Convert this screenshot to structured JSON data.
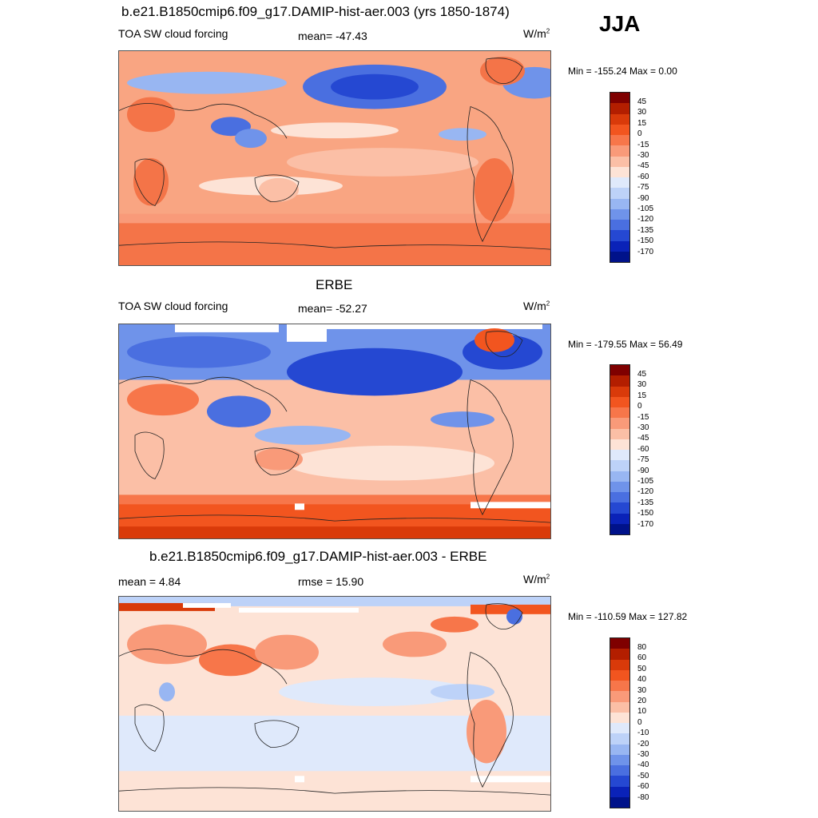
{
  "season": "JJA",
  "panel1": {
    "title": "b.e21.B1850cmip6.f09_g17.DAMIP-hist-aer.003 (yrs 1850-1874)",
    "left_label": "TOA SW cloud forcing",
    "center_label": "mean= -47.43",
    "unit_base": "W/m",
    "unit_exp": "2",
    "minmax": "Min = -155.24 Max =   0.00"
  },
  "panel2": {
    "title": "ERBE",
    "left_label": "TOA SW cloud forcing",
    "center_label": "mean= -52.27",
    "unit_base": "W/m",
    "unit_exp": "2",
    "minmax": "Min = -179.55 Max =  56.49"
  },
  "panel3": {
    "title": "b.e21.B1850cmip6.f09_g17.DAMIP-hist-aer.003 - ERBE",
    "left_label": "mean =   4.84",
    "center_label": "rmse =  15.90",
    "unit_base": "W/m",
    "unit_exp": "2",
    "minmax": "Min = -110.59 Max = 127.82"
  },
  "colorbar_abs": {
    "labels": [
      "45",
      "30",
      "15",
      "0",
      "-15",
      "-30",
      "-45",
      "-60",
      "-75",
      "-90",
      "-105",
      "-120",
      "-135",
      "-150",
      "-170"
    ],
    "colors": [
      "#7f0000",
      "#b31e00",
      "#d93a0a",
      "#f2551f",
      "#f7764a",
      "#f99a79",
      "#fbbfa6",
      "#fde3d6",
      "#dfe9fb",
      "#bdd2f8",
      "#98b6f2",
      "#6f93ea",
      "#4a6fe0",
      "#2548d2",
      "#0a22b8",
      "#00128a"
    ]
  },
  "colorbar_diff": {
    "labels": [
      "80",
      "60",
      "50",
      "40",
      "30",
      "20",
      "10",
      "0",
      "-10",
      "-20",
      "-30",
      "-40",
      "-50",
      "-60",
      "-80"
    ],
    "colors": [
      "#7f0000",
      "#b31e00",
      "#d93a0a",
      "#f2551f",
      "#f7764a",
      "#f99a79",
      "#fbbfa6",
      "#fde3d6",
      "#dfe9fb",
      "#bdd2f8",
      "#98b6f2",
      "#6f93ea",
      "#4a6fe0",
      "#2548d2",
      "#0a22b8",
      "#00128a"
    ]
  }
}
